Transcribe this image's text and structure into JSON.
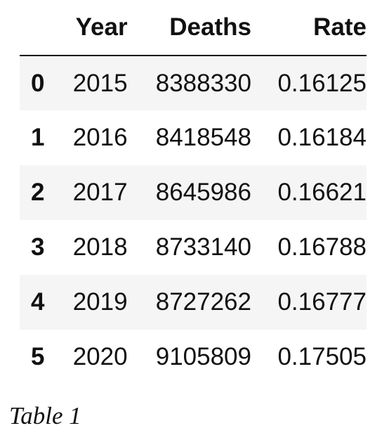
{
  "table": {
    "columns": [
      "Year",
      "Deaths",
      "Rate"
    ],
    "rows": [
      {
        "index": "0",
        "year": "2015",
        "deaths": "8388330",
        "rate": "0.16125"
      },
      {
        "index": "1",
        "year": "2016",
        "deaths": "8418548",
        "rate": "0.16184"
      },
      {
        "index": "2",
        "year": "2017",
        "deaths": "8645986",
        "rate": "0.16621"
      },
      {
        "index": "3",
        "year": "2018",
        "deaths": "8733140",
        "rate": "0.16788"
      },
      {
        "index": "4",
        "year": "2019",
        "deaths": "8727262",
        "rate": "0.16777"
      },
      {
        "index": "5",
        "year": "2020",
        "deaths": "9105809",
        "rate": "0.17505"
      }
    ]
  },
  "caption": "Table 1",
  "colors": {
    "stripe": "#f5f5f5",
    "text": "#111111"
  }
}
